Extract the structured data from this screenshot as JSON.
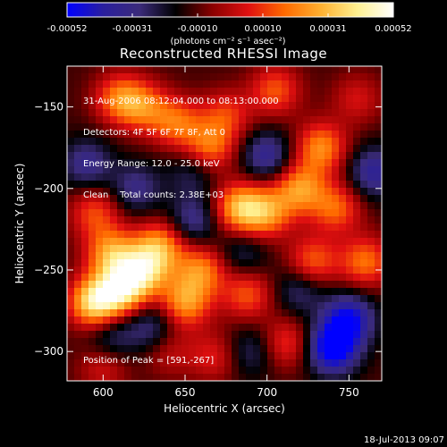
{
  "colorbar": {
    "ticks": [
      "-0.00052",
      "-0.00031",
      "-0.00010",
      "0.00010",
      "0.00031",
      "0.00052"
    ],
    "unit_label": "(photons cm⁻² s⁻¹ asec⁻²)",
    "colors": [
      "#0000ff",
      "#2a1f9e",
      "#3b2b7a",
      "#000000",
      "#8a0000",
      "#e01010",
      "#ff6a00",
      "#ffb030",
      "#fff090",
      "#ffffff"
    ]
  },
  "chart_data": {
    "type": "heatmap",
    "title": "Reconstructed RHESSI Image",
    "xlabel": "Heliocentric X (arcsec)",
    "ylabel": "Heliocentric Y (arcsec)",
    "xlim": [
      578,
      770
    ],
    "ylim": [
      -318,
      -125
    ],
    "x_ticks": [
      600,
      650,
      700,
      750
    ],
    "y_ticks": [
      -150,
      -200,
      -250,
      -300
    ],
    "x_tick_labels": [
      "600",
      "650",
      "700",
      "750"
    ],
    "y_tick_labels": [
      "−150",
      "−200",
      "−250",
      "−300"
    ],
    "vmin": -0.00052,
    "vmax": 0.00052,
    "blobs": [
      {
        "x": 595,
        "y": -270,
        "v": 0.00052
      },
      {
        "x": 612,
        "y": -262,
        "v": 0.00045
      },
      {
        "x": 625,
        "y": -250,
        "v": 0.0004
      },
      {
        "x": 605,
        "y": -240,
        "v": 0.00036
      },
      {
        "x": 635,
        "y": -235,
        "v": 0.00034
      },
      {
        "x": 650,
        "y": -270,
        "v": 0.00036
      },
      {
        "x": 660,
        "y": -250,
        "v": 0.00032
      },
      {
        "x": 683,
        "y": -212,
        "v": 0.0004
      },
      {
        "x": 700,
        "y": -215,
        "v": 0.00033
      },
      {
        "x": 720,
        "y": -200,
        "v": 0.00035
      },
      {
        "x": 733,
        "y": -175,
        "v": 0.00034
      },
      {
        "x": 742,
        "y": -212,
        "v": 0.00028
      },
      {
        "x": 760,
        "y": -245,
        "v": 0.0003
      },
      {
        "x": 610,
        "y": -145,
        "v": 0.0003
      },
      {
        "x": 625,
        "y": -150,
        "v": 0.00026
      },
      {
        "x": 645,
        "y": -160,
        "v": 0.00028
      },
      {
        "x": 665,
        "y": -175,
        "v": 0.0003
      },
      {
        "x": 675,
        "y": -155,
        "v": 0.00022
      },
      {
        "x": 705,
        "y": -140,
        "v": 0.00026
      },
      {
        "x": 728,
        "y": -245,
        "v": 0.00028
      },
      {
        "x": 688,
        "y": -265,
        "v": 0.00026
      },
      {
        "x": 712,
        "y": -295,
        "v": 0.00022
      },
      {
        "x": 668,
        "y": -303,
        "v": 0.00018
      },
      {
        "x": 640,
        "y": -300,
        "v": 0.00014
      },
      {
        "x": 595,
        "y": -215,
        "v": 0.00024
      },
      {
        "x": 600,
        "y": -310,
        "v": 0.00016
      },
      {
        "x": 755,
        "y": -145,
        "v": 0.00016
      },
      {
        "x": 740,
        "y": -298,
        "v": -0.00045
      },
      {
        "x": 750,
        "y": -280,
        "v": -0.00036
      },
      {
        "x": 700,
        "y": -180,
        "v": -0.00025
      },
      {
        "x": 655,
        "y": -220,
        "v": -0.00022
      },
      {
        "x": 620,
        "y": -200,
        "v": -0.0002
      },
      {
        "x": 590,
        "y": -185,
        "v": -0.00022
      },
      {
        "x": 630,
        "y": -285,
        "v": -0.0002
      },
      {
        "x": 720,
        "y": -262,
        "v": -0.00018
      },
      {
        "x": 690,
        "y": -300,
        "v": -0.00016
      },
      {
        "x": 765,
        "y": -190,
        "v": -0.00026
      },
      {
        "x": 655,
        "y": -190,
        "v": -0.00015
      },
      {
        "x": 685,
        "y": -240,
        "v": -0.00015
      },
      {
        "x": 605,
        "y": -290,
        "v": -0.00018
      }
    ]
  },
  "info": {
    "line1": "31-Aug-2006 08:12:04.000 to 08:13:00.000",
    "line2": "Detectors: 4F 5F 6F 7F 8F, Att 0",
    "line3": "Energy Range: 12.0 - 25.0 keV",
    "line4": "Clean    Total counts: 2.38E+03"
  },
  "peak_label": "Position of Peak = [591,-267]",
  "footer_timestamp": "18-Jul-2013 09:07"
}
